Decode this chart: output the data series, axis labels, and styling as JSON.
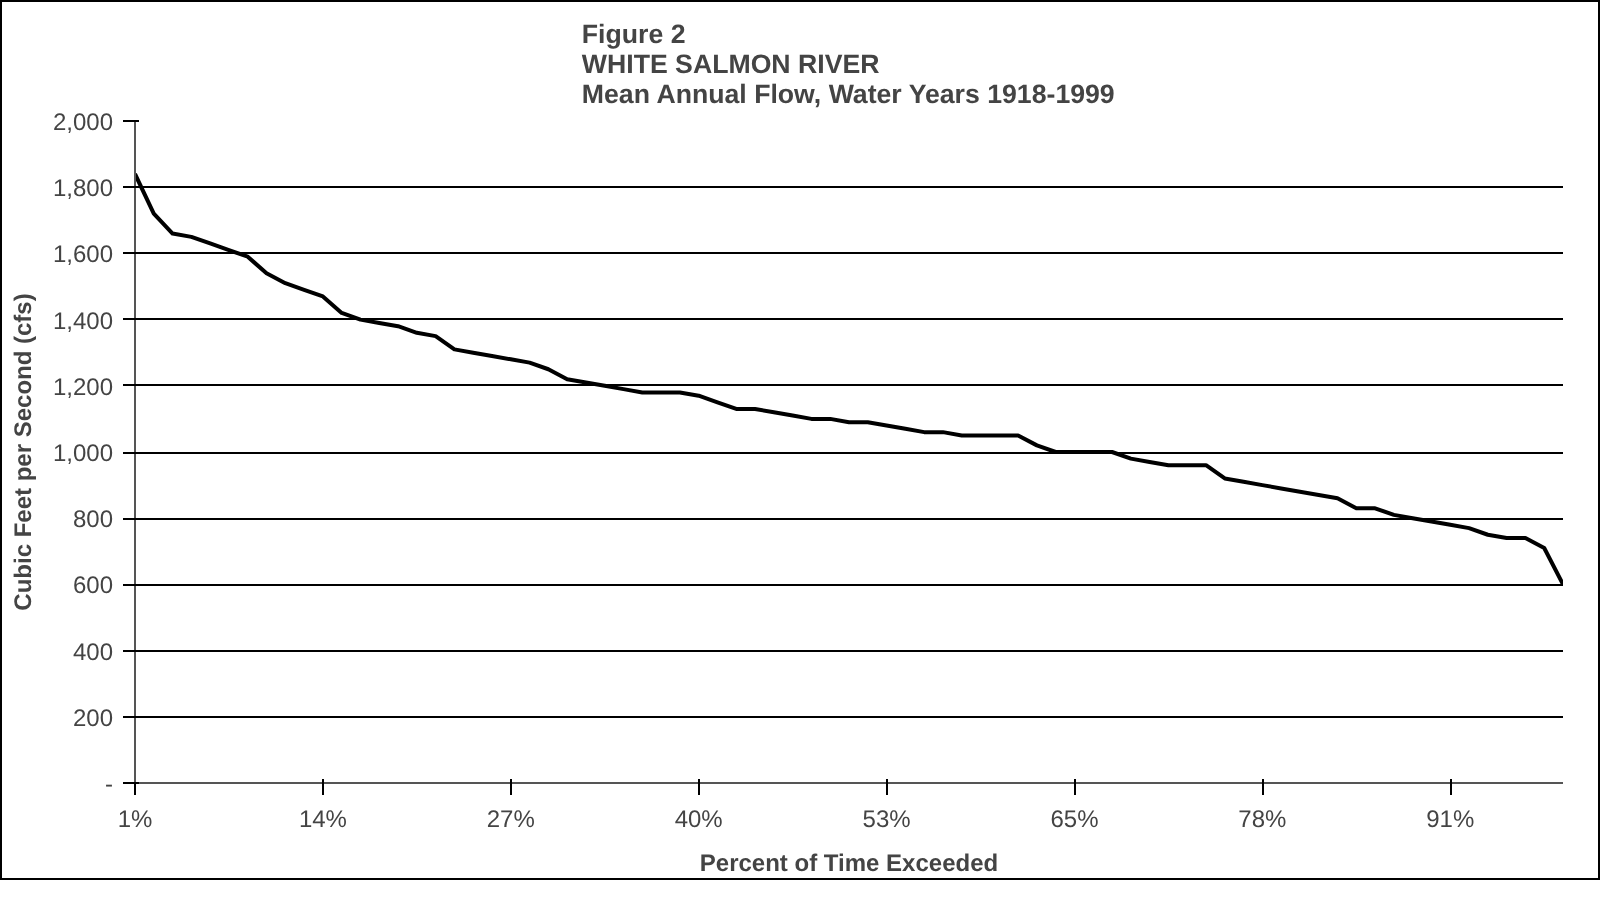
{
  "chart_data": {
    "type": "line",
    "title": "Figure 2\nWHITE SALMON RIVER\nMean Annual Flow, Water Years 1918-1999",
    "xlabel": "Percent of Time Exceeded",
    "ylabel": "Cubic Feet per Second (cfs)",
    "categories": [
      "1%",
      null,
      null,
      null,
      null,
      null,
      null,
      null,
      null,
      null,
      "14%",
      null,
      null,
      null,
      null,
      null,
      null,
      null,
      null,
      null,
      "27%",
      null,
      null,
      null,
      null,
      null,
      null,
      null,
      null,
      null,
      "40%",
      null,
      null,
      null,
      null,
      null,
      null,
      null,
      null,
      null,
      "53%",
      null,
      null,
      null,
      null,
      null,
      null,
      null,
      null,
      null,
      "65%",
      null,
      null,
      null,
      null,
      null,
      null,
      null,
      null,
      null,
      "78%",
      null,
      null,
      null,
      null,
      null,
      null,
      null,
      null,
      null,
      "91%",
      null,
      null,
      null,
      null,
      null,
      null
    ],
    "series": [
      {
        "color": "#000000",
        "values": [
          1840,
          1720,
          1660,
          1650,
          1630,
          1610,
          1590,
          1540,
          1510,
          1490,
          1470,
          1420,
          1400,
          1390,
          1380,
          1360,
          1350,
          1310,
          1300,
          1290,
          1280,
          1270,
          1250,
          1220,
          1210,
          1200,
          1190,
          1180,
          1180,
          1180,
          1170,
          1150,
          1130,
          1130,
          1120,
          1110,
          1100,
          1100,
          1090,
          1090,
          1080,
          1070,
          1060,
          1060,
          1050,
          1050,
          1050,
          1050,
          1020,
          1000,
          1000,
          1000,
          1000,
          980,
          970,
          960,
          960,
          960,
          920,
          910,
          900,
          890,
          880,
          870,
          860,
          830,
          830,
          810,
          800,
          790,
          780,
          770,
          750,
          740,
          740,
          710,
          600
        ]
      }
    ],
    "ylim": [
      0,
      2000
    ],
    "yticks": [
      {
        "value": 0,
        "label": "-"
      },
      {
        "value": 200,
        "label": "200"
      },
      {
        "value": 400,
        "label": "400"
      },
      {
        "value": 600,
        "label": "600"
      },
      {
        "value": 800,
        "label": "800"
      },
      {
        "value": 1000,
        "label": "1,000"
      },
      {
        "value": 1200,
        "label": "1,200"
      },
      {
        "value": 1400,
        "label": "1,400"
      },
      {
        "value": 1600,
        "label": "1,600"
      },
      {
        "value": 1800,
        "label": "1,800"
      },
      {
        "value": 2000,
        "label": "2,000"
      }
    ],
    "grid": "y",
    "marker": "none",
    "line_style": "solid"
  }
}
